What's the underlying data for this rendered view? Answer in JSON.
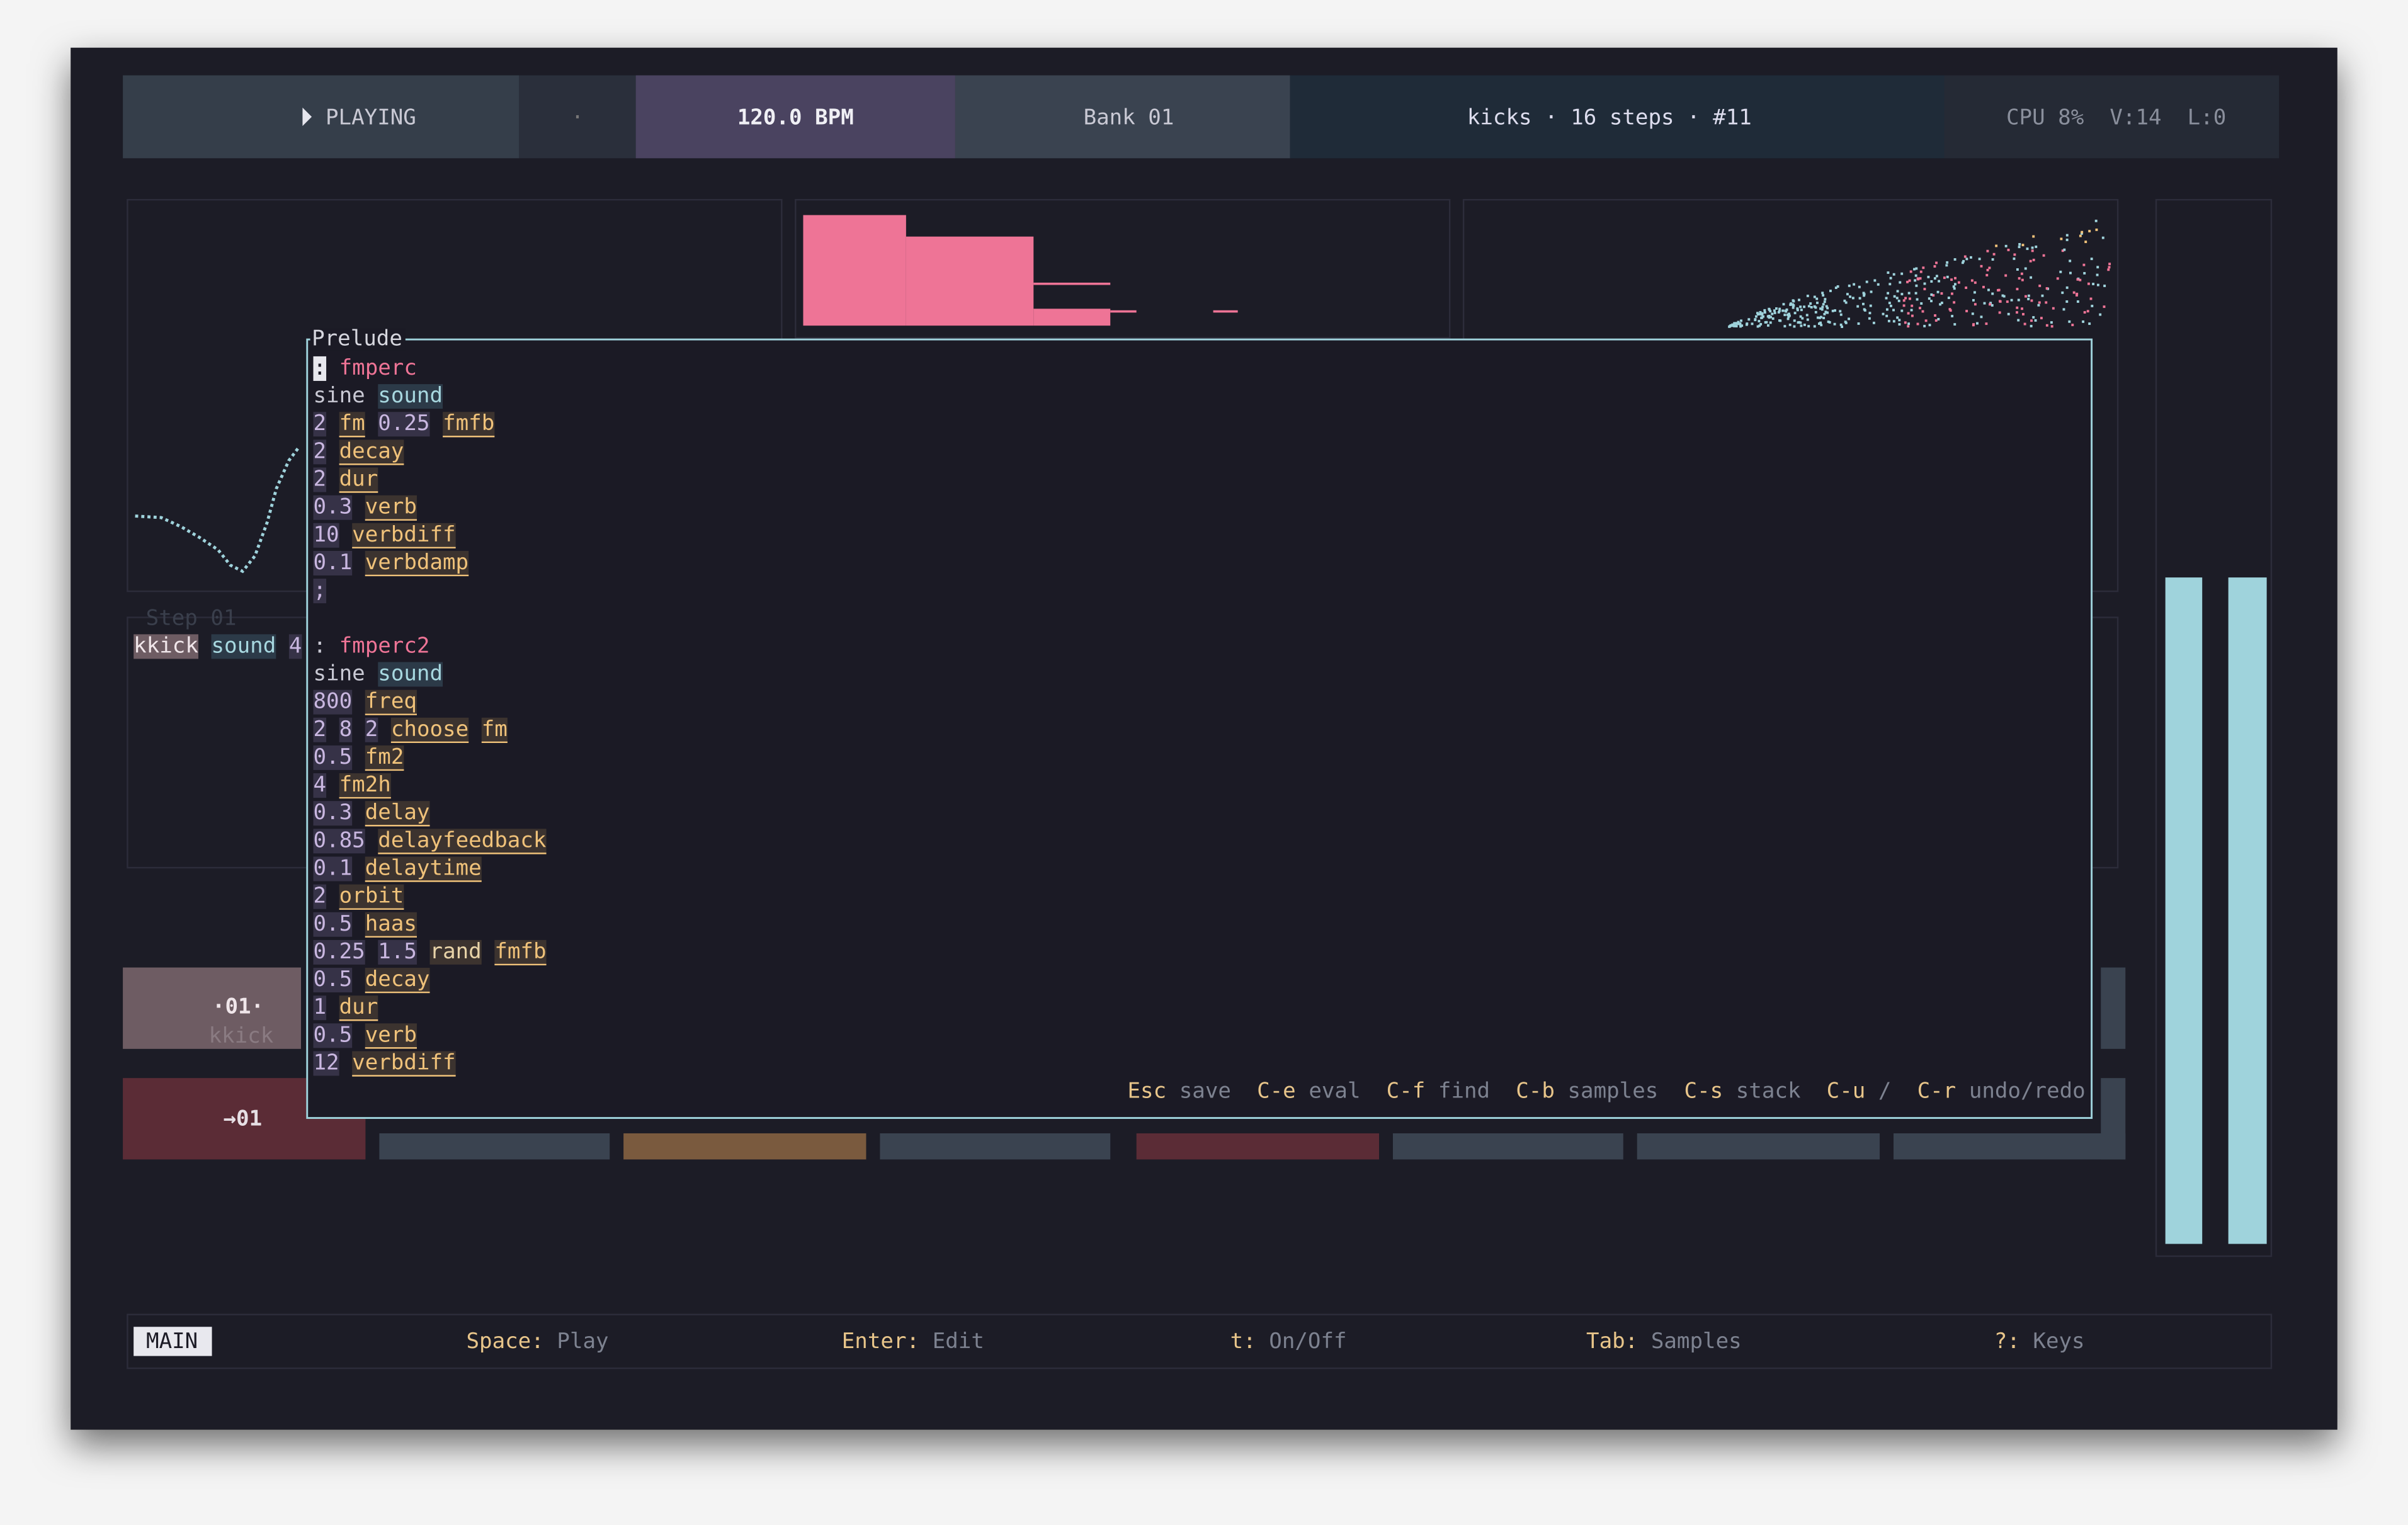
{
  "header": {
    "status": "PLAYING",
    "dot": "·",
    "tempo": "120.0 BPM",
    "bank": "Bank 01",
    "pattern": "kicks · 16 steps · #11",
    "stats": "CPU 8%  V:14  L:0"
  },
  "background": {
    "step_title": "Step 01",
    "step_code": [
      [
        "kkick",
        "k"
      ],
      [
        "sound",
        "s"
      ],
      [
        "4",
        "n"
      ]
    ],
    "tile_index": "·01·",
    "tile_name": "kkick",
    "row_index": "→01"
  },
  "editor": {
    "title": "Prelude",
    "lines": [
      [
        [
          ":",
          "c"
        ],
        [
          "fmperc",
          "d"
        ]
      ],
      [
        [
          "sine",
          "p"
        ],
        [
          "sound",
          "s"
        ]
      ],
      [
        [
          "2",
          "n"
        ],
        [
          "fm",
          "w"
        ],
        [
          "0.25",
          "n"
        ],
        [
          "fmfb",
          "w"
        ]
      ],
      [
        [
          "2",
          "n"
        ],
        [
          "decay",
          "w"
        ]
      ],
      [
        [
          "2",
          "n"
        ],
        [
          "dur",
          "w"
        ]
      ],
      [
        [
          "0.3",
          "n"
        ],
        [
          "verb",
          "w"
        ]
      ],
      [
        [
          "10",
          "n"
        ],
        [
          "verbdiff",
          "w"
        ]
      ],
      [
        [
          "0.1",
          "n"
        ],
        [
          "verbdamp",
          "w"
        ]
      ],
      [
        [
          ";",
          "n"
        ]
      ],
      [],
      [
        [
          ":",
          "p"
        ],
        [
          "fmperc2",
          "d"
        ]
      ],
      [
        [
          "sine",
          "p"
        ],
        [
          "sound",
          "s"
        ]
      ],
      [
        [
          "800",
          "n"
        ],
        [
          "freq",
          "w"
        ]
      ],
      [
        [
          "2",
          "n"
        ],
        [
          "8",
          "n"
        ],
        [
          "2",
          "n"
        ],
        [
          "choose",
          "w"
        ],
        [
          "fm",
          "w"
        ]
      ],
      [
        [
          "0.5",
          "n"
        ],
        [
          "fm2",
          "w"
        ]
      ],
      [
        [
          "4",
          "n"
        ],
        [
          "fm2h",
          "w"
        ]
      ],
      [
        [
          "0.3",
          "n"
        ],
        [
          "delay",
          "w"
        ]
      ],
      [
        [
          "0.85",
          "n"
        ],
        [
          "delayfeedback",
          "w"
        ]
      ],
      [
        [
          "0.1",
          "n"
        ],
        [
          "delaytime",
          "w"
        ]
      ],
      [
        [
          "2",
          "n"
        ],
        [
          "orbit",
          "w"
        ]
      ],
      [
        [
          "0.5",
          "n"
        ],
        [
          "haas",
          "w"
        ]
      ],
      [
        [
          "0.25",
          "n"
        ],
        [
          "1.5",
          "n"
        ],
        [
          "rand",
          "r"
        ],
        [
          "fmfb",
          "w"
        ]
      ],
      [
        [
          "0.5",
          "n"
        ],
        [
          "decay",
          "w"
        ]
      ],
      [
        [
          "1",
          "n"
        ],
        [
          "dur",
          "w"
        ]
      ],
      [
        [
          "0.5",
          "n"
        ],
        [
          "verb",
          "w"
        ]
      ],
      [
        [
          "12",
          "n"
        ],
        [
          "verbdiff",
          "w"
        ]
      ]
    ],
    "hints": [
      {
        "key": "Esc",
        "desc": "save"
      },
      {
        "key": "C-e",
        "desc": "eval"
      },
      {
        "key": "C-f",
        "desc": "find"
      },
      {
        "key": "C-b",
        "desc": "samples"
      },
      {
        "key": "C-s",
        "desc": "stack"
      },
      {
        "key": "C-u",
        "desc": "/"
      },
      {
        "key": "C-r",
        "desc": "undo/redo"
      }
    ]
  },
  "footer": {
    "mode": "MAIN",
    "items": [
      {
        "key": "Space:",
        "desc": "Play"
      },
      {
        "key": "Enter:",
        "desc": "Edit"
      },
      {
        "key": "t:",
        "desc": "On/Off"
      },
      {
        "key": "Tab:",
        "desc": "Samples"
      },
      {
        "key": "?:",
        "desc": "Keys"
      }
    ]
  }
}
